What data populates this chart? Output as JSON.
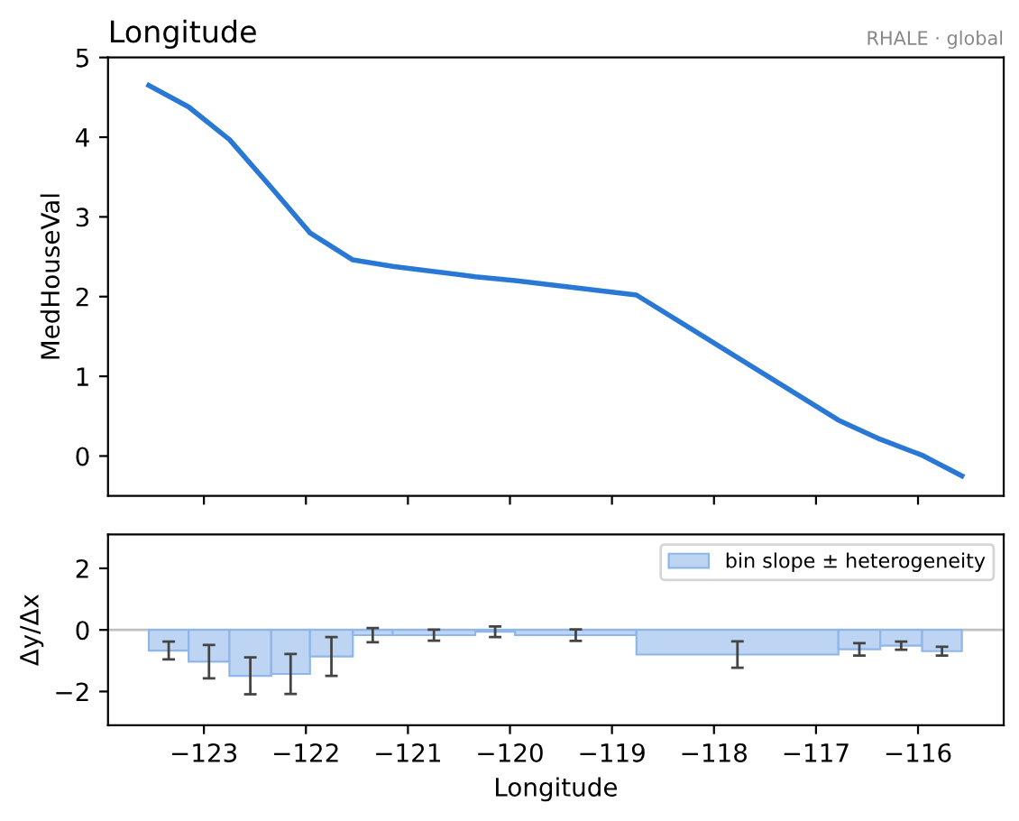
{
  "chart_data": [
    {
      "type": "line",
      "title": "Longitude",
      "ylabel": "MedHouseVal",
      "annotations": [
        "RHALE · global"
      ],
      "x": [
        -123.54,
        -123.15,
        -122.75,
        -122.34,
        -121.96,
        -121.54,
        -121.15,
        -120.34,
        -119.95,
        -118.76,
        -116.78,
        -116.37,
        -115.96,
        -115.57
      ],
      "series": [
        {
          "color": "#2a78d6",
          "values": [
            4.65,
            4.38,
            3.97,
            3.37,
            2.8,
            2.46,
            2.38,
            2.25,
            2.2,
            2.02,
            0.45,
            0.21,
            0.01,
            -0.25
          ]
        }
      ],
      "xlim": [
        -123.94,
        -115.16
      ],
      "xticks": [
        -123,
        -122,
        -121,
        -120,
        -119,
        -118,
        -117,
        -116
      ],
      "ylim": [
        -0.5,
        5
      ],
      "yticks": [
        0,
        1,
        2,
        3,
        4,
        5
      ],
      "tick_labels": "y",
      "grid": false,
      "legend": false
    },
    {
      "type": "histogram",
      "xlabel": "Longitude",
      "ylabel": "Δy/Δx",
      "bins": [
        -123.54,
        -123.15,
        -122.75,
        -122.34,
        -121.96,
        -121.54,
        -121.15,
        -120.34,
        -119.95,
        -118.76,
        -116.78,
        -116.37,
        -115.96,
        -115.57
      ],
      "series": [
        {
          "name": "bin slope ± heterogeneity",
          "color": "#bdd4f2",
          "values": [
            -0.67,
            -1.03,
            -1.49,
            -1.43,
            -0.86,
            -0.17,
            -0.17,
            -0.06,
            -0.17,
            -0.8,
            -0.63,
            -0.51,
            -0.69
          ],
          "errors": [
            0.29,
            0.54,
            0.6,
            0.65,
            0.63,
            0.23,
            0.18,
            0.17,
            0.19,
            0.43,
            0.2,
            0.13,
            0.14
          ]
        }
      ],
      "xlim": [
        -123.94,
        -115.16
      ],
      "xticks": [
        -123,
        -122,
        -121,
        -120,
        -119,
        -118,
        -117,
        -116
      ],
      "ylim": [
        -3.1,
        3.1
      ],
      "yticks": [
        -2,
        0,
        2
      ],
      "ref_lines": [
        {
          "axis": "y",
          "value": 0,
          "color": "#c0c0c0"
        }
      ],
      "grid": false,
      "legend": "top right"
    }
  ]
}
